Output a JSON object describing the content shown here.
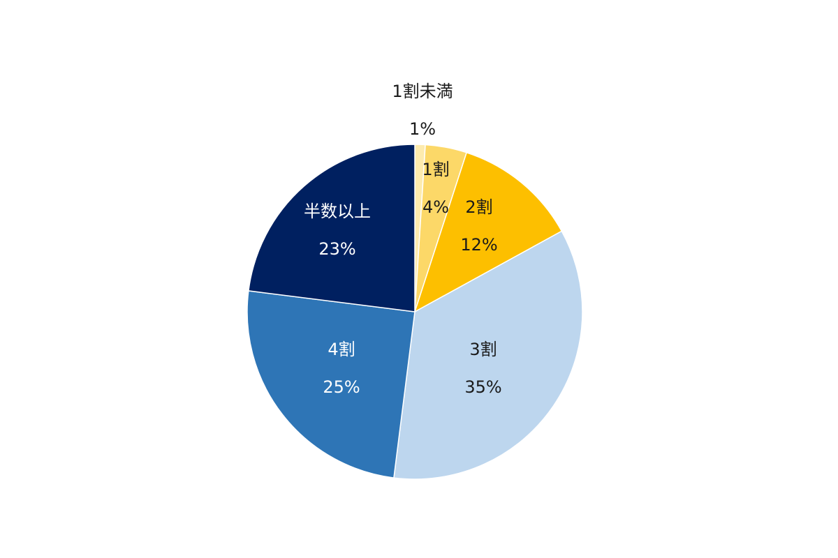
{
  "chart_data": {
    "type": "pie",
    "start_angle": "12 o'clock",
    "direction": "clockwise",
    "slices": [
      {
        "label": "1割未満",
        "value": 1,
        "value_label": "1%",
        "color": "#FDEBAE",
        "label_color": "#1a1a1a"
      },
      {
        "label": "1割",
        "value": 4,
        "value_label": "4%",
        "color": "#FCD868",
        "label_color": "#1a1a1a"
      },
      {
        "label": "2割",
        "value": 12,
        "value_label": "12%",
        "color": "#FDBF00",
        "label_color": "#1a1a1a"
      },
      {
        "label": "3割",
        "value": 35,
        "value_label": "35%",
        "color": "#BDD6EE",
        "label_color": "#1a1a1a"
      },
      {
        "label": "4割",
        "value": 25,
        "value_label": "25%",
        "color": "#2E75B6",
        "label_color": "#ffffff"
      },
      {
        "label": "半数以上",
        "value": 23,
        "value_label": "23%",
        "color": "#002060",
        "label_color": "#ffffff"
      }
    ]
  }
}
